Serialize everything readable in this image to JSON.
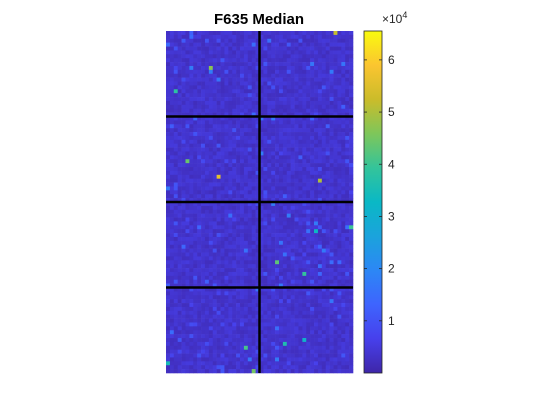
{
  "chart_data": {
    "type": "heatmap",
    "title": "F635 Median",
    "xlabel": "",
    "ylabel": "",
    "grid": {
      "block_rows": 4,
      "block_cols": 2,
      "spots_per_block_row": 22,
      "spots_per_block_col": 24,
      "separator_color": "#000000"
    },
    "colorbar": {
      "colormap": "parula",
      "range": [
        0,
        65535
      ],
      "exponent_label": "×10",
      "exponent_power": "4",
      "ticks": [
        {
          "value": 10000,
          "label": "1"
        },
        {
          "value": 20000,
          "label": "2"
        },
        {
          "value": 30000,
          "label": "3"
        },
        {
          "value": 40000,
          "label": "4"
        },
        {
          "value": 50000,
          "label": "5"
        },
        {
          "value": 60000,
          "label": "6"
        }
      ]
    },
    "background_level": 3500,
    "bright_spots": [
      {
        "row": 0,
        "col": 43,
        "value": 52000
      },
      {
        "row": 9,
        "col": 11,
        "value": 47000
      },
      {
        "row": 15,
        "col": 2,
        "value": 38000
      },
      {
        "row": 33,
        "col": 5,
        "value": 44000
      },
      {
        "row": 37,
        "col": 13,
        "value": 56000
      },
      {
        "row": 38,
        "col": 39,
        "value": 50000
      },
      {
        "row": 50,
        "col": 47,
        "value": 40000
      },
      {
        "row": 51,
        "col": 38,
        "value": 33000
      },
      {
        "row": 59,
        "col": 28,
        "value": 43000
      },
      {
        "row": 62,
        "col": 35,
        "value": 39000
      },
      {
        "row": 79,
        "col": 35,
        "value": 31000
      },
      {
        "row": 80,
        "col": 30,
        "value": 36000
      },
      {
        "row": 81,
        "col": 20,
        "value": 41000
      },
      {
        "row": 85,
        "col": 0,
        "value": 35000
      },
      {
        "row": 87,
        "col": 22,
        "value": 45000
      },
      {
        "row": 88,
        "col": 8,
        "value": 37000
      }
    ]
  }
}
